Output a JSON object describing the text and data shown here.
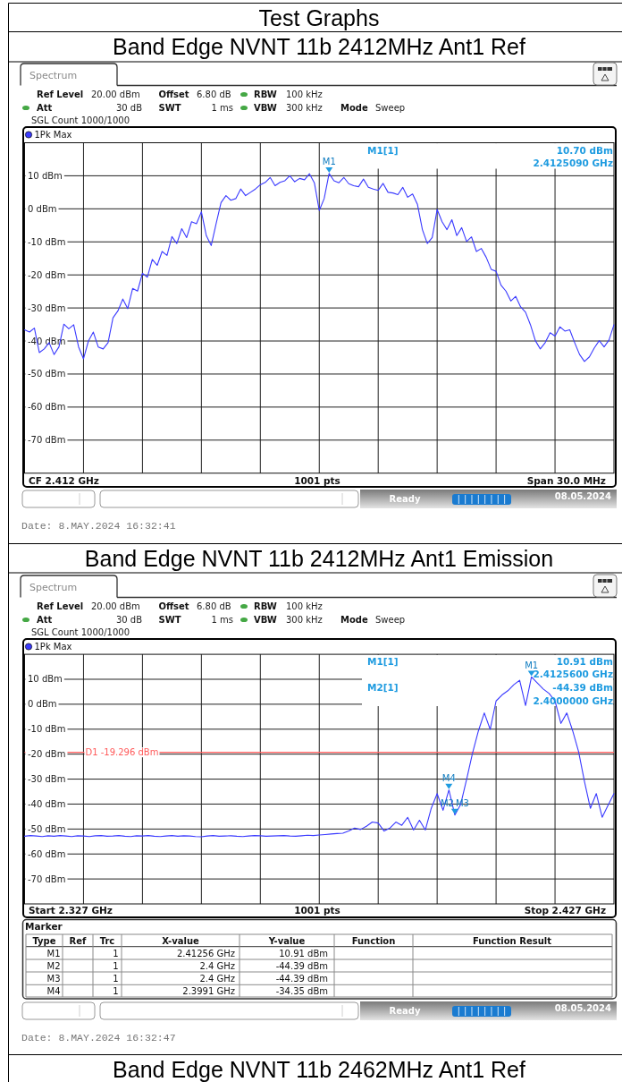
{
  "chart_data": [
    {
      "type": "line",
      "title": "Test Graphs",
      "subtitle": "Band Edge NVNT 11b 2412MHz Ant1 Ref",
      "categories": [
        null,
        null,
        null,
        null,
        null,
        null,
        null,
        null,
        null,
        null,
        null,
        null,
        null,
        null,
        null,
        null,
        null,
        null,
        null,
        null,
        null,
        null,
        null,
        null,
        null,
        null,
        null,
        null,
        null,
        null,
        null,
        null,
        null,
        null,
        null,
        null,
        null,
        null,
        null,
        null,
        null,
        null,
        null,
        null,
        null,
        null,
        null,
        null,
        null,
        null,
        null,
        null,
        null,
        null,
        null,
        null,
        null,
        null,
        null,
        null,
        null,
        null,
        null,
        null,
        null,
        null,
        null,
        null,
        null,
        null,
        null,
        null,
        null,
        null,
        null,
        null,
        null,
        null,
        null,
        null,
        null,
        null,
        null,
        null,
        null,
        null,
        null,
        null,
        null,
        null,
        null,
        null,
        null,
        null,
        null,
        null,
        null,
        null,
        null,
        null,
        null,
        null,
        null,
        null,
        null,
        null,
        null,
        null,
        null,
        null,
        null,
        null,
        null,
        null,
        null,
        null,
        null,
        null,
        null,
        null,
        null
      ],
      "series": [
        {
          "name": "1Pk Max",
          "color": "#3a3aff",
          "values": [
            -36.6,
            -37.3,
            -36.1,
            -43.5,
            -42.4,
            -40.5,
            -44.1,
            -41.8,
            -34.9,
            -36.3,
            -35.1,
            -41.8,
            -45.4,
            -40.0,
            -37.3,
            -41.8,
            -42.4,
            -40.5,
            -33.0,
            -30.9,
            -27.3,
            -30.2,
            -24.1,
            -24.9,
            -19.5,
            -20.7,
            -15.3,
            -17.1,
            -12.9,
            -14.1,
            -8.4,
            -10.5,
            -6.0,
            -8.7,
            -3.9,
            -4.5,
            -0.9,
            -8.1,
            -11.1,
            -4.5,
            1.9,
            4.0,
            2.6,
            3.1,
            6.0,
            4.0,
            5.0,
            6.0,
            7.3,
            8.0,
            9.5,
            7.0,
            8.0,
            8.5,
            10.0,
            8.2,
            9.2,
            8.8,
            10.6,
            7.9,
            -0.5,
            3.1,
            10.7,
            8.5,
            7.9,
            9.5,
            7.6,
            7.0,
            6.7,
            9.0,
            6.5,
            6.0,
            5.6,
            7.7,
            5.0,
            4.8,
            4.3,
            6.5,
            3.5,
            4.5,
            1.3,
            -6.3,
            -10.5,
            -8.7,
            -0.2,
            -3.9,
            -6.3,
            -3.3,
            -8.1,
            -5.7,
            -9.9,
            -8.5,
            -12.9,
            -12.0,
            -14.7,
            -18.3,
            -18.9,
            -23.1,
            -24.9,
            -27.9,
            -26.5,
            -29.7,
            -31.3,
            -35.1,
            -39.9,
            -42.4,
            -40.5,
            -37.5,
            -38.5,
            -35.7,
            -37.0,
            -36.6,
            -40.5,
            -44.1,
            -46.2,
            -44.8,
            -42.1,
            -39.9,
            -41.8,
            -39.7,
            -35.1
          ]
        }
      ],
      "ylim": [
        -80,
        20
      ],
      "yticks": [
        {
          "value": 10,
          "label": "10 dBm"
        },
        {
          "value": 0,
          "label": "0 dBm"
        },
        {
          "value": -10,
          "label": "-10 dBm"
        },
        {
          "value": -20,
          "label": "-20 dBm"
        },
        {
          "value": -30,
          "label": "-30 dBm"
        },
        {
          "value": -40,
          "label": "-40 dBm"
        },
        {
          "value": -50,
          "label": "-50 dBm"
        },
        {
          "value": -60,
          "label": "-60 dBm"
        },
        {
          "value": -70,
          "label": "-70 dBm"
        }
      ],
      "tick_labels": "y",
      "grid": true,
      "legend": "top left",
      "annotations": [
        "Spectrum",
        "Ref Level",
        "20.00 dBm",
        "Offset",
        "6.80 dB",
        "RBW",
        "100 kHz",
        "Att",
        "30 dB",
        "SWT",
        "1 ms",
        "VBW",
        "300 kHz",
        "Mode",
        "Sweep",
        "SGL Count 1000/1000",
        "M1[1]",
        "10.70 dBm",
        "2.4125090 GHz",
        "M1",
        "CF 2.412 GHz",
        "1001 pts",
        "Span 30.0 MHz",
        "Ready",
        "08.05.2024",
        "Date: 8.MAY.2024 16:32:41"
      ]
    },
    {
      "type": "line",
      "title": "Band Edge NVNT 11b 2412MHz Ant1 Emission",
      "categories": [
        null,
        null,
        null,
        null,
        null,
        null,
        null,
        null,
        null,
        null,
        null,
        null,
        null,
        null,
        null,
        null,
        null,
        null,
        null,
        null,
        null,
        null,
        null,
        null,
        null,
        null,
        null,
        null,
        null,
        null,
        null,
        null,
        null,
        null,
        null,
        null,
        null,
        null,
        null,
        null,
        null,
        null,
        null,
        null,
        null,
        null,
        null,
        null,
        null,
        null,
        null,
        null,
        null,
        null,
        null,
        null,
        null,
        null,
        null,
        null,
        null,
        null,
        null,
        null,
        null,
        null,
        null,
        null,
        null,
        null,
        null,
        null,
        null,
        null,
        null,
        null,
        null,
        null,
        null,
        null,
        null,
        null,
        null,
        null,
        null,
        null,
        null,
        null,
        null,
        null,
        null,
        null,
        null,
        null,
        null,
        null,
        null,
        null,
        null,
        null,
        null
      ],
      "series": [
        {
          "name": "1Pk Max",
          "color": "#3a3aff",
          "values": [
            -52.9,
            -52.6,
            -52.8,
            -53.0,
            -52.7,
            -52.9,
            -52.6,
            -52.8,
            -53.0,
            -52.7,
            -52.8,
            -53.0,
            -52.7,
            -52.6,
            -52.9,
            -52.8,
            -52.6,
            -52.9,
            -53.0,
            -52.7,
            -52.8,
            -52.6,
            -52.9,
            -53.0,
            -52.8,
            -52.6,
            -52.9,
            -52.7,
            -52.8,
            -53.0,
            -53.1,
            -52.8,
            -52.6,
            -52.9,
            -52.8,
            -52.7,
            -52.9,
            -53.0,
            -52.8,
            -52.6,
            -52.7,
            -52.9,
            -52.8,
            -52.7,
            -52.6,
            -52.8,
            -52.9,
            -52.7,
            -52.5,
            -52.6,
            -52.4,
            -52.2,
            -52.0,
            -51.8,
            -51.7,
            -50.8,
            -49.6,
            -50.2,
            -48.9,
            -47.2,
            -47.6,
            -50.8,
            -49.6,
            -47.2,
            -48.5,
            -45.3,
            -50.4,
            -46.5,
            -50.4,
            -41.7,
            -35.8,
            -42.5,
            -34.35,
            -44.39,
            -40.1,
            -30.1,
            -19.6,
            -10.7,
            -3.5,
            -10.1,
            1.3,
            3.7,
            5.4,
            7.8,
            9.6,
            -0.5,
            10.91,
            8.5,
            6.1,
            4.3,
            1.3,
            -7.7,
            -3.5,
            -10.7,
            -19.0,
            -31.0,
            -41.7,
            -35.8,
            -45.3,
            -40.5,
            -35.8
          ]
        }
      ],
      "ylim": [
        -80,
        20
      ],
      "yticks": [
        {
          "value": 10,
          "label": "10 dBm"
        },
        {
          "value": 0,
          "label": "0 dBm"
        },
        {
          "value": -10,
          "label": "-10 dBm"
        },
        {
          "value": -20,
          "label": "-20 dBm"
        },
        {
          "value": -30,
          "label": "-30 dBm"
        },
        {
          "value": -40,
          "label": "-40 dBm"
        },
        {
          "value": -50,
          "label": "-50 dBm"
        },
        {
          "value": -60,
          "label": "-60 dBm"
        },
        {
          "value": -70,
          "label": "-70 dBm"
        }
      ],
      "tick_labels": "y",
      "grid": true,
      "legend": "top left",
      "ref_lines": [
        {
          "axis": "y",
          "value": -19.296,
          "label": "D1 -19.296 dBm",
          "color": "#ff5a5a"
        }
      ],
      "annotations": [
        "Spectrum",
        "Ref Level",
        "20.00 dBm",
        "Offset",
        "6.80 dB",
        "RBW",
        "100 kHz",
        "Att",
        "30 dB",
        "SWT",
        "1 ms",
        "VBW",
        "300 kHz",
        "Mode",
        "Sweep",
        "SGL Count 1000/1000",
        "M1[1]",
        "10.91 dBm",
        "2.4125600 GHz",
        "M2[1]",
        "-44.39 dBm",
        "2.4000000 GHz",
        "M1",
        "M2",
        "M3",
        "M4",
        "Start 2.327 GHz",
        "1001 pts",
        "Stop 2.427 GHz",
        "Marker",
        "Type",
        "Ref",
        "Trc",
        "X-value",
        "Y-value",
        "Function",
        "Function Result",
        "M1",
        "1",
        "2.41256 GHz",
        "10.91 dBm",
        "M2",
        "1",
        "2.4 GHz",
        "-44.39 dBm",
        "M3",
        "1",
        "2.4 GHz",
        "-44.39 dBm",
        "M4",
        "1",
        "2.3991 GHz",
        "-34.35 dBm",
        "Ready",
        "08.05.2024",
        "Date: 8.MAY.2024 16:32:47"
      ]
    },
    {
      "type": "other",
      "title": "Band Edge NVNT 11b 2462MHz Ant1 Ref"
    }
  ]
}
